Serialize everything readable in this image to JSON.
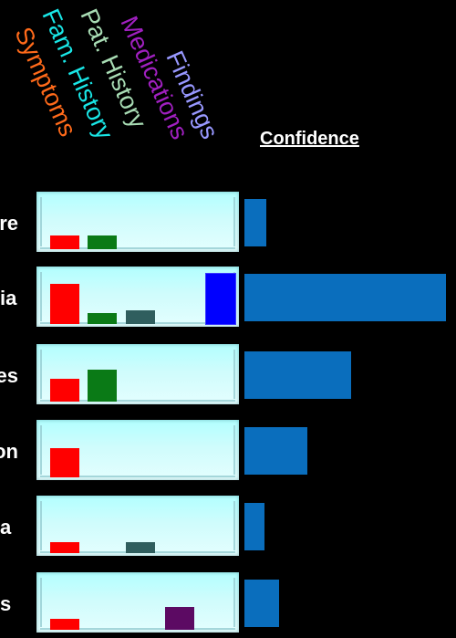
{
  "column_headers": [
    {
      "label": "Symptoms",
      "color": "#ff6a1a"
    },
    {
      "label": "Fam. History",
      "color": "#19e6e6"
    },
    {
      "label": "Pat. History",
      "color": "#a8dcb4"
    },
    {
      "label": "Medications",
      "color": "#a020c0"
    },
    {
      "label": "Findings",
      "color": "#9898ff"
    }
  ],
  "confidence_title": "Confidence",
  "rows": [
    {
      "label": "re",
      "bars": [
        0.25,
        0.25,
        0,
        0,
        0
      ],
      "confidence": 0.11
    },
    {
      "label": "ia",
      "bars": [
        0.74,
        0.2,
        0.25,
        0,
        0.91
      ],
      "confidence": 1.0
    },
    {
      "label": "es",
      "bars": [
        0.42,
        0.59,
        0,
        0,
        0
      ],
      "confidence": 0.53
    },
    {
      "label": "on",
      "bars": [
        0.54,
        0,
        0,
        0,
        0
      ],
      "confidence": 0.31
    },
    {
      "label": "a",
      "bars": [
        0.2,
        0,
        0.2,
        0,
        0
      ],
      "confidence": 0.1
    },
    {
      "label": "s",
      "bars": [
        0.2,
        0,
        0,
        0.42,
        0
      ],
      "confidence": 0.17
    }
  ],
  "bar_colors": [
    "#ff0000",
    "#0a7a16",
    "#2f5e5e",
    "#5c0a63",
    "#0000ff"
  ]
}
